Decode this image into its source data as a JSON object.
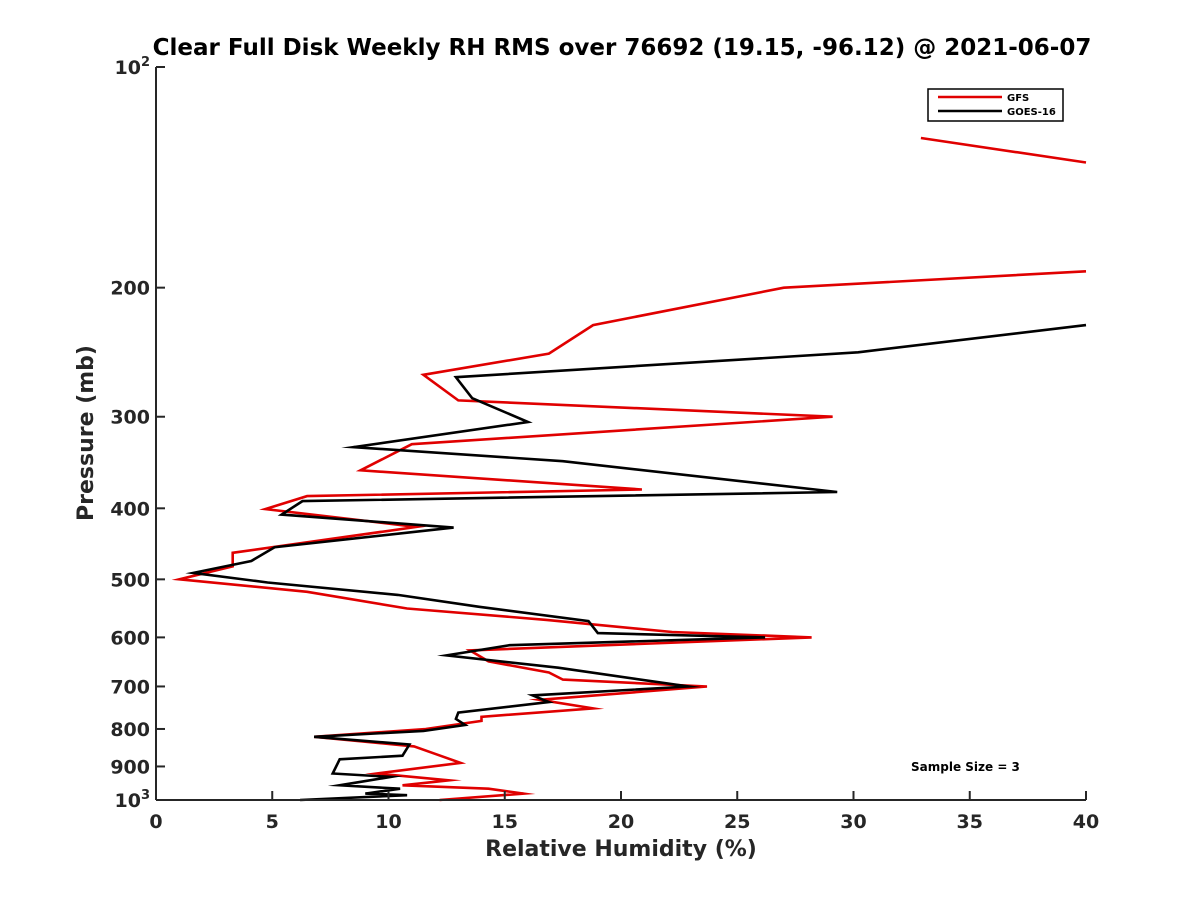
{
  "chart_data": {
    "type": "line",
    "title": "Clear Full Disk Weekly RH RMS over 76692 (19.15, -96.12) @ 2021-06-07",
    "xlabel": "Relative Humidity (%)",
    "ylabel": "Pressure (mb)",
    "xlim": [
      0,
      40
    ],
    "ylim": [
      100,
      1000
    ],
    "yscale": "log",
    "y_reversed": true,
    "x_ticks": [
      0,
      5,
      10,
      15,
      20,
      25,
      30,
      35,
      40
    ],
    "x_tick_labels": [
      "0",
      "5",
      "10",
      "15",
      "20",
      "25",
      "30",
      "35",
      "40"
    ],
    "y_ticks": [
      100,
      200,
      300,
      400,
      500,
      600,
      700,
      800,
      900,
      1000
    ],
    "y_tick_labels": [
      {
        "base": "10",
        "sup": "2"
      },
      {
        "base": "200"
      },
      {
        "base": "300"
      },
      {
        "base": "400"
      },
      {
        "base": "500"
      },
      {
        "base": "600"
      },
      {
        "base": "700"
      },
      {
        "base": "800"
      },
      {
        "base": "900"
      },
      {
        "base": "10",
        "sup": "3"
      }
    ],
    "legend_position": "top-right",
    "annotation": "Sample Size = 3",
    "series": [
      {
        "name": "GFS",
        "color": "#e00000",
        "segments": [
          [
            [
              32.9,
              125
            ],
            [
              40,
              135
            ]
          ],
          [
            [
              40,
              190
            ],
            [
              27,
              200
            ],
            [
              18.8,
              225
            ],
            [
              16.9,
              246
            ],
            [
              11.5,
              263
            ],
            [
              13.0,
              285
            ],
            [
              29.1,
              300
            ],
            [
              11.0,
              327
            ],
            [
              8.8,
              355
            ],
            [
              20.9,
              377
            ],
            [
              6.5,
              385
            ],
            [
              4.7,
              401
            ],
            [
              11.2,
              424
            ],
            [
              3.3,
              460
            ],
            [
              3.3,
              480
            ],
            [
              1.0,
              500
            ],
            [
              6.5,
              520
            ],
            [
              10.8,
              548
            ],
            [
              16.8,
              568
            ],
            [
              22.2,
              590
            ],
            [
              28.2,
              600
            ],
            [
              13.5,
              625
            ],
            [
              14.3,
              647
            ],
            [
              16.9,
              670
            ],
            [
              17.5,
              685
            ],
            [
              23.7,
              700
            ],
            [
              16.5,
              730
            ],
            [
              18.8,
              750
            ],
            [
              14.0,
              770
            ],
            [
              14.0,
              780
            ],
            [
              11.6,
              800
            ],
            [
              6.8,
              820
            ],
            [
              11.1,
              845
            ],
            [
              12.0,
              865
            ],
            [
              13.1,
              890
            ],
            [
              9.5,
              920
            ],
            [
              12.6,
              940
            ],
            [
              10.6,
              955
            ],
            [
              14.3,
              965
            ],
            [
              15.8,
              980
            ],
            [
              12.2,
              1000
            ]
          ]
        ]
      },
      {
        "name": "GOES-16",
        "color": "#000000",
        "segments": [
          [
            [
              40,
              225
            ],
            [
              30.2,
              245
            ],
            [
              12.9,
              265
            ],
            [
              13.6,
              283
            ],
            [
              16.0,
              305
            ],
            [
              8.5,
              330
            ],
            [
              17.5,
              345
            ],
            [
              29.3,
              380
            ],
            [
              6.3,
              391
            ],
            [
              5.4,
              408
            ],
            [
              12.8,
              425
            ],
            [
              5.1,
              452
            ],
            [
              4.1,
              472
            ],
            [
              1.6,
              490
            ],
            [
              4.8,
              505
            ],
            [
              10.4,
              525
            ],
            [
              13.9,
              545
            ],
            [
              18.6,
              570
            ],
            [
              19.0,
              592
            ],
            [
              26.2,
              600
            ],
            [
              15.2,
              615
            ],
            [
              12.5,
              635
            ],
            [
              17.3,
              660
            ],
            [
              22.9,
              700
            ],
            [
              16.2,
              720
            ],
            [
              16.9,
              735
            ],
            [
              13.0,
              760
            ],
            [
              12.9,
              775
            ],
            [
              13.3,
              790
            ],
            [
              11.5,
              805
            ],
            [
              6.8,
              820
            ],
            [
              10.9,
              840
            ],
            [
              10.6,
              870
            ],
            [
              7.9,
              880
            ],
            [
              7.6,
              920
            ],
            [
              10.1,
              930
            ],
            [
              7.9,
              955
            ],
            [
              10.5,
              965
            ],
            [
              9.0,
              980
            ],
            [
              10.8,
              985
            ],
            [
              6.2,
              1000
            ]
          ]
        ]
      }
    ]
  }
}
